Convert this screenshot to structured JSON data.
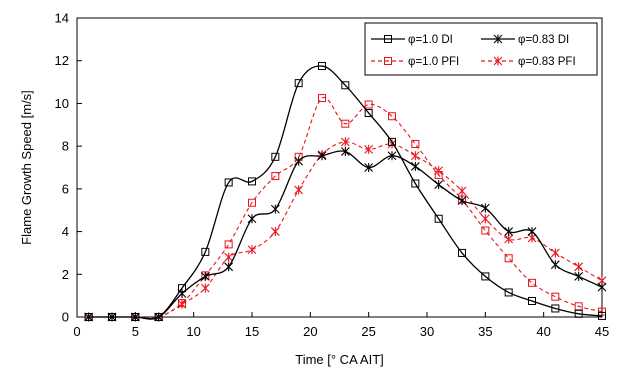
{
  "chart_data": {
    "type": "line",
    "xlabel": "Time [° CA AIT]",
    "ylabel": "Flame Growth Speed [m/s]",
    "xlim": [
      0,
      45
    ],
    "ylim": [
      0,
      14
    ],
    "xticks": [
      0,
      5,
      10,
      15,
      20,
      25,
      30,
      35,
      40,
      45
    ],
    "yticks": [
      0,
      2,
      4,
      6,
      8,
      10,
      12,
      14
    ],
    "grid": false,
    "legend_position": "top-right",
    "series": [
      {
        "name": "φ=1.0  DI",
        "color": "#000000",
        "dash": "solid",
        "marker": "square",
        "x": [
          1,
          3,
          5,
          7,
          9,
          11,
          13,
          15,
          17,
          19,
          21,
          23,
          25,
          27,
          29,
          31,
          33,
          35,
          37,
          39,
          41,
          43,
          45
        ],
        "y": [
          0,
          0,
          0,
          0,
          1.35,
          3.05,
          6.3,
          6.35,
          7.5,
          10.95,
          11.75,
          10.85,
          9.55,
          8.2,
          6.25,
          4.6,
          3.0,
          1.9,
          1.15,
          0.75,
          0.4,
          0.15,
          0.05
        ]
      },
      {
        "name": "φ=0.83 DI",
        "color": "#000000",
        "dash": "solid",
        "marker": "asterisk",
        "x": [
          1,
          3,
          5,
          7,
          9,
          11,
          13,
          15,
          17,
          19,
          21,
          23,
          25,
          27,
          29,
          31,
          33,
          35,
          37,
          39,
          41,
          43,
          45
        ],
        "y": [
          0,
          0,
          0,
          0,
          1.1,
          1.9,
          2.35,
          4.6,
          5.05,
          7.3,
          7.55,
          7.75,
          7.0,
          7.55,
          7.05,
          6.2,
          5.45,
          5.1,
          4.0,
          4.0,
          2.45,
          1.9,
          1.4
        ]
      },
      {
        "name": "φ=1.0 PFI",
        "color": "#e8141a",
        "dash": "dashed",
        "marker": "square",
        "x": [
          1,
          3,
          5,
          7,
          9,
          11,
          13,
          15,
          17,
          19,
          21,
          23,
          25,
          27,
          29,
          31,
          33,
          35,
          37,
          39,
          41,
          43,
          45
        ],
        "y": [
          0,
          0,
          0,
          0,
          0.65,
          1.95,
          3.4,
          5.35,
          6.6,
          7.5,
          10.25,
          9.05,
          9.95,
          9.4,
          8.1,
          6.65,
          5.5,
          4.05,
          2.75,
          1.6,
          0.95,
          0.5,
          0.25
        ]
      },
      {
        "name": "φ=0.83 PFI",
        "color": "#e8141a",
        "dash": "dashed",
        "marker": "asterisk",
        "x": [
          1,
          3,
          5,
          7,
          9,
          11,
          13,
          15,
          17,
          19,
          21,
          23,
          25,
          27,
          29,
          31,
          33,
          35,
          37,
          39,
          41,
          43,
          45
        ],
        "y": [
          0,
          0,
          0,
          0,
          0.6,
          1.35,
          2.8,
          3.15,
          4.0,
          5.95,
          7.6,
          8.2,
          7.85,
          8.1,
          7.55,
          6.85,
          5.9,
          4.6,
          3.65,
          3.7,
          3.0,
          2.35,
          1.7
        ]
      }
    ]
  }
}
